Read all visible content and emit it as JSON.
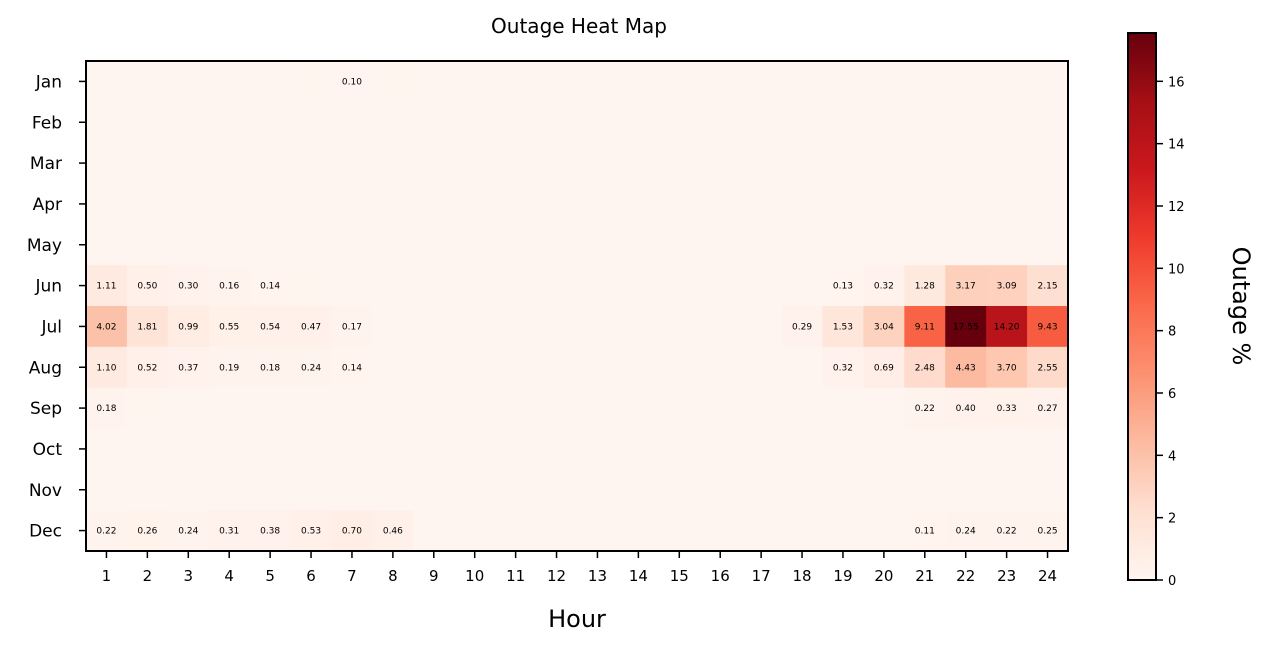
{
  "chart_data": {
    "type": "heatmap",
    "title": "Outage Heat Map",
    "xlabel": "Hour",
    "ylabel": "",
    "colorbar_label": "Outage %",
    "colormap": "Reds",
    "color_range": [
      0,
      17.55
    ],
    "colorbar_ticks": [
      "0",
      "2",
      "4",
      "6",
      "8",
      "10",
      "12",
      "14",
      "16"
    ],
    "x": [
      "1",
      "2",
      "3",
      "4",
      "5",
      "6",
      "7",
      "8",
      "9",
      "10",
      "11",
      "12",
      "13",
      "14",
      "15",
      "16",
      "17",
      "18",
      "19",
      "20",
      "21",
      "22",
      "23",
      "24"
    ],
    "y": [
      "Jan",
      "Feb",
      "Mar",
      "Apr",
      "May",
      "Jun",
      "Jul",
      "Aug",
      "Sep",
      "Oct",
      "Nov",
      "Dec"
    ],
    "values": [
      [
        0,
        0,
        0,
        0,
        0,
        0.05,
        0.1,
        0.05,
        0,
        0,
        0,
        0,
        0,
        0,
        0,
        0,
        0,
        0,
        0,
        0,
        0,
        0,
        0,
        0
      ],
      [
        0,
        0,
        0,
        0,
        0,
        0,
        0,
        0,
        0,
        0,
        0,
        0,
        0,
        0,
        0,
        0,
        0,
        0,
        0,
        0,
        0,
        0,
        0,
        0
      ],
      [
        0,
        0,
        0,
        0,
        0,
        0,
        0,
        0,
        0,
        0,
        0,
        0,
        0,
        0,
        0,
        0,
        0,
        0,
        0,
        0,
        0,
        0,
        0,
        0
      ],
      [
        0,
        0,
        0,
        0,
        0,
        0,
        0,
        0,
        0,
        0,
        0,
        0,
        0,
        0,
        0,
        0,
        0,
        0,
        0,
        0,
        0,
        0,
        0,
        0
      ],
      [
        0,
        0,
        0,
        0,
        0,
        0,
        0,
        0,
        0,
        0,
        0,
        0,
        0,
        0,
        0,
        0,
        0,
        0,
        0,
        0,
        0,
        0,
        0,
        0
      ],
      [
        1.11,
        0.5,
        0.3,
        0.16,
        0.14,
        0.05,
        0,
        0,
        0,
        0,
        0,
        0,
        0,
        0,
        0,
        0,
        0,
        0,
        0.13,
        0.32,
        1.28,
        3.17,
        3.09,
        2.15
      ],
      [
        4.02,
        1.81,
        0.99,
        0.55,
        0.54,
        0.47,
        0.17,
        0,
        0,
        0,
        0,
        0,
        0,
        0,
        0,
        0,
        0,
        0.29,
        1.53,
        3.04,
        9.11,
        17.55,
        14.2,
        9.43
      ],
      [
        1.1,
        0.52,
        0.37,
        0.19,
        0.18,
        0.24,
        0.14,
        0,
        0,
        0,
        0,
        0,
        0,
        0,
        0,
        0,
        0,
        0,
        0.32,
        0.69,
        2.48,
        4.43,
        3.7,
        2.55
      ],
      [
        0.18,
        0.05,
        0,
        0,
        0,
        0,
        0,
        0,
        0,
        0,
        0,
        0,
        0,
        0,
        0,
        0,
        0,
        0,
        0,
        0,
        0.22,
        0.4,
        0.33,
        0.27
      ],
      [
        0,
        0,
        0,
        0,
        0,
        0,
        0,
        0,
        0,
        0,
        0,
        0,
        0,
        0,
        0,
        0,
        0,
        0,
        0,
        0,
        0,
        0,
        0,
        0
      ],
      [
        0,
        0,
        0,
        0,
        0,
        0,
        0,
        0,
        0,
        0,
        0,
        0,
        0,
        0,
        0,
        0,
        0,
        0,
        0,
        0,
        0,
        0,
        0,
        0
      ],
      [
        0.22,
        0.26,
        0.24,
        0.31,
        0.38,
        0.53,
        0.7,
        0.46,
        0,
        0,
        0,
        0,
        0,
        0,
        0,
        0,
        0,
        0,
        0,
        0,
        0.11,
        0.24,
        0.22,
        0.25
      ]
    ],
    "cell_labels": [
      [
        "",
        "",
        "",
        "",
        "",
        "",
        "0.10",
        "",
        "",
        "",
        "",
        "",
        "",
        "",
        "",
        "",
        "",
        "",
        "",
        "",
        "",
        "",
        "",
        ""
      ],
      [
        "",
        "",
        "",
        "",
        "",
        "",
        "",
        "",
        "",
        "",
        "",
        "",
        "",
        "",
        "",
        "",
        "",
        "",
        "",
        "",
        "",
        "",
        "",
        ""
      ],
      [
        "",
        "",
        "",
        "",
        "",
        "",
        "",
        "",
        "",
        "",
        "",
        "",
        "",
        "",
        "",
        "",
        "",
        "",
        "",
        "",
        "",
        "",
        "",
        ""
      ],
      [
        "",
        "",
        "",
        "",
        "",
        "",
        "",
        "",
        "",
        "",
        "",
        "",
        "",
        "",
        "",
        "",
        "",
        "",
        "",
        "",
        "",
        "",
        "",
        ""
      ],
      [
        "",
        "",
        "",
        "",
        "",
        "",
        "",
        "",
        "",
        "",
        "",
        "",
        "",
        "",
        "",
        "",
        "",
        "",
        "",
        "",
        "",
        "",
        "",
        ""
      ],
      [
        "1.11",
        "0.50",
        "0.30",
        "0.16",
        "0.14",
        "",
        "",
        "",
        "",
        "",
        "",
        "",
        "",
        "",
        "",
        "",
        "",
        "",
        "0.13",
        "0.32",
        "1.28",
        "3.17",
        "3.09",
        "2.15"
      ],
      [
        "4.02",
        "1.81",
        "0.99",
        "0.55",
        "0.54",
        "0.47",
        "0.17",
        "",
        "",
        "",
        "",
        "",
        "",
        "",
        "",
        "",
        "",
        "0.29",
        "1.53",
        "3.04",
        "9.11",
        "17.55",
        "14.20",
        "9.43"
      ],
      [
        "1.10",
        "0.52",
        "0.37",
        "0.19",
        "0.18",
        "0.24",
        "0.14",
        "",
        "",
        "",
        "",
        "",
        "",
        "",
        "",
        "",
        "",
        "",
        "0.32",
        "0.69",
        "2.48",
        "4.43",
        "3.70",
        "2.55"
      ],
      [
        "0.18",
        "",
        "",
        "",
        "",
        "",
        "",
        "",
        "",
        "",
        "",
        "",
        "",
        "",
        "",
        "",
        "",
        "",
        "",
        "",
        "0.22",
        "0.40",
        "0.33",
        "0.27"
      ],
      [
        "",
        "",
        "",
        "",
        "",
        "",
        "",
        "",
        "",
        "",
        "",
        "",
        "",
        "",
        "",
        "",
        "",
        "",
        "",
        "",
        "",
        "",
        "",
        ""
      ],
      [
        "",
        "",
        "",
        "",
        "",
        "",
        "",
        "",
        "",
        "",
        "",
        "",
        "",
        "",
        "",
        "",
        "",
        "",
        "",
        "",
        "",
        "",
        "",
        ""
      ],
      [
        "0.22",
        "0.26",
        "0.24",
        "0.31",
        "0.38",
        "0.53",
        "0.70",
        "0.46",
        "",
        "",
        "",
        "",
        "",
        "",
        "",
        "",
        "",
        "",
        "",
        "",
        "0.11",
        "0.24",
        "0.22",
        "0.25"
      ]
    ]
  }
}
